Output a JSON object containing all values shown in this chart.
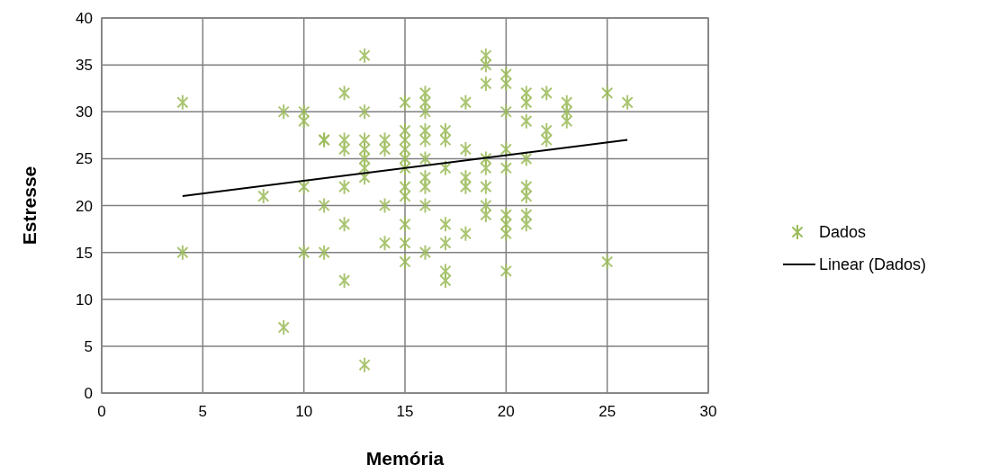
{
  "chart_data": {
    "type": "scatter",
    "xlabel": "Memória",
    "ylabel": "Estresse",
    "xlim": [
      0,
      30
    ],
    "ylim": [
      0,
      40
    ],
    "xticks": [
      0,
      5,
      10,
      15,
      20,
      25,
      30
    ],
    "yticks": [
      0,
      5,
      10,
      15,
      20,
      25,
      30,
      35,
      40
    ],
    "grid": true,
    "legend": "right",
    "series": [
      {
        "name": "Dados",
        "marker": "cross",
        "color": "#9bbb59",
        "x": [
          4,
          4,
          8,
          9,
          9,
          10,
          10,
          10,
          10,
          11,
          11,
          11,
          11,
          12,
          12,
          12,
          12,
          12,
          12,
          13,
          13,
          13,
          13,
          13,
          13,
          13,
          13,
          14,
          14,
          14,
          14,
          15,
          15,
          15,
          15,
          15,
          15,
          15,
          15,
          15,
          15,
          15,
          16,
          16,
          16,
          16,
          16,
          16,
          16,
          16,
          16,
          16,
          17,
          17,
          17,
          17,
          17,
          17,
          17,
          18,
          18,
          18,
          18,
          18,
          19,
          19,
          19,
          19,
          19,
          19,
          19,
          19,
          20,
          20,
          20,
          20,
          20,
          20,
          20,
          20,
          20,
          21,
          21,
          21,
          21,
          21,
          21,
          21,
          21,
          22,
          22,
          22,
          23,
          23,
          23,
          25,
          25,
          26
        ],
        "values": [
          31,
          15,
          21,
          30,
          7,
          30,
          29,
          22,
          15,
          27,
          27,
          20,
          15,
          32,
          27,
          26,
          22,
          18,
          12,
          36,
          30,
          27,
          26,
          25,
          24,
          23,
          3,
          27,
          26,
          20,
          16,
          31,
          28,
          27,
          26,
          25,
          24,
          22,
          21,
          18,
          16,
          14,
          32,
          31,
          30,
          28,
          27,
          25,
          23,
          22,
          20,
          15,
          28,
          27,
          24,
          18,
          16,
          13,
          12,
          31,
          26,
          23,
          22,
          17,
          36,
          35,
          33,
          25,
          24,
          22,
          20,
          19,
          34,
          33,
          30,
          26,
          24,
          19,
          18,
          17,
          13,
          32,
          31,
          29,
          25,
          22,
          21,
          19,
          18,
          32,
          28,
          27,
          31,
          30,
          29,
          32,
          14,
          31
        ]
      },
      {
        "name": "Linear (Dados)",
        "type": "line",
        "marker": "none",
        "color": "#000000",
        "x": [
          4,
          26
        ],
        "values": [
          21,
          27
        ]
      }
    ]
  }
}
